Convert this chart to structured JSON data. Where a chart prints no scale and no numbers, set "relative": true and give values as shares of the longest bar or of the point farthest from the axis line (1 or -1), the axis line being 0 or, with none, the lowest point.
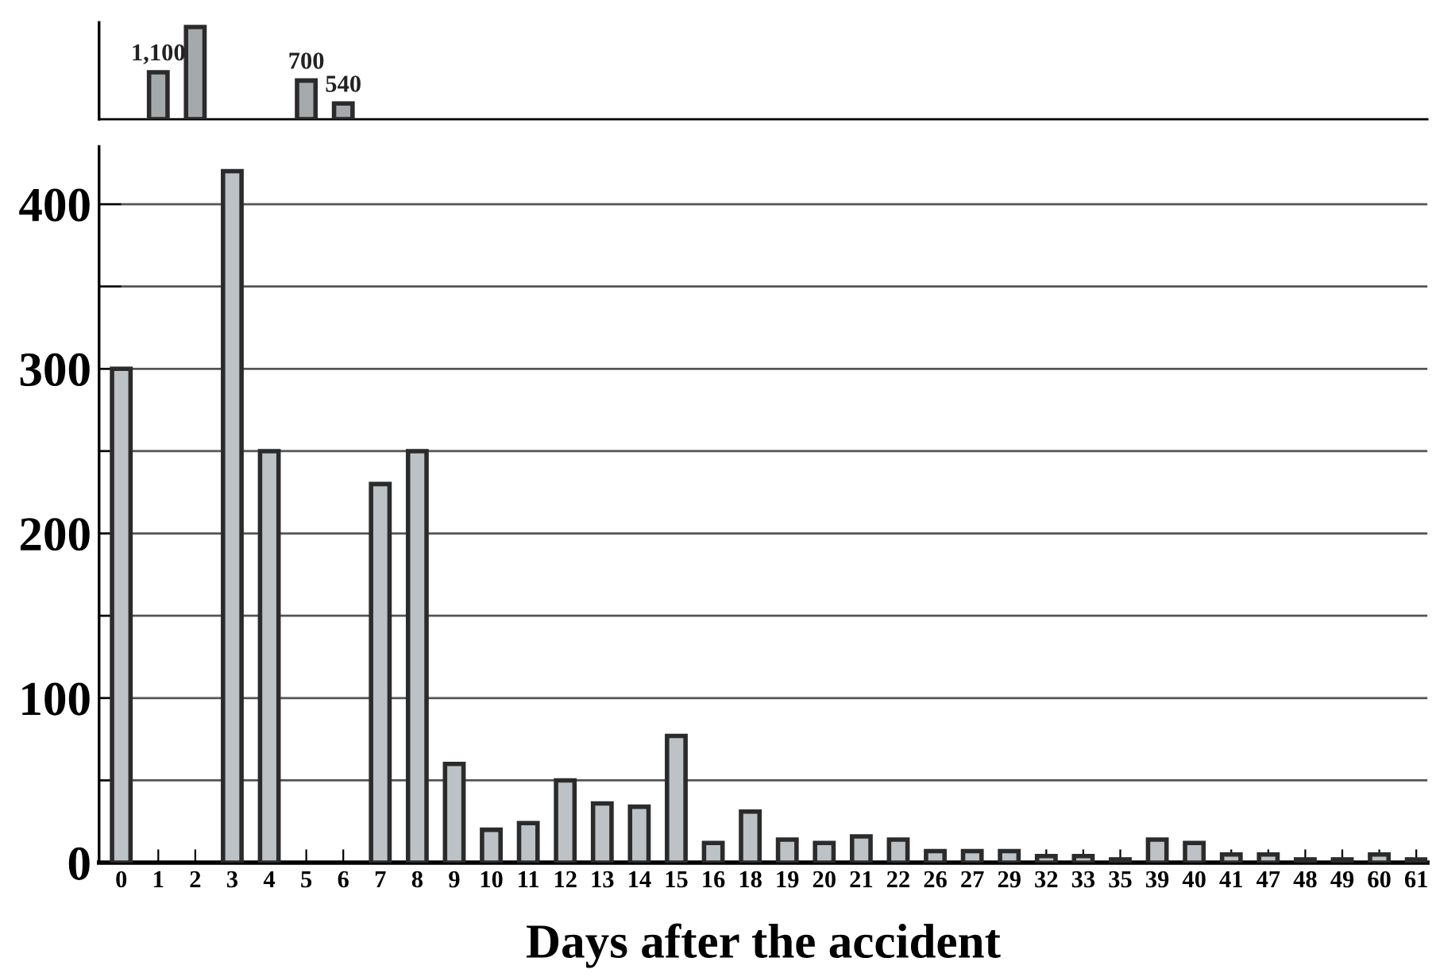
{
  "chart_data": [
    {
      "type": "bar",
      "relative": true,
      "categories": [
        "0",
        "1",
        "2",
        "3",
        "4",
        "5",
        "6",
        "7",
        "8",
        "9",
        "10",
        "11",
        "12",
        "13",
        "14",
        "15",
        "16",
        "18",
        "19",
        "20",
        "21",
        "22",
        "26",
        "27",
        "29",
        "32",
        "33",
        "35",
        "39",
        "40",
        "41",
        "47",
        "48",
        "49",
        "60",
        "61"
      ],
      "series": [
        {
          "color": "#a4a9ac",
          "values": [
            null,
            0.51,
            1,
            null,
            null,
            0.42,
            0.17,
            null,
            null,
            null,
            null,
            null,
            null,
            null,
            null,
            null,
            null,
            null,
            null,
            null,
            null,
            null,
            null,
            null,
            null,
            null,
            null,
            null,
            null,
            null,
            null,
            null,
            null,
            null,
            null,
            null
          ]
        }
      ],
      "value_labels": [
        null,
        "1,100",
        null,
        null,
        null,
        "700",
        "540",
        null,
        null,
        null,
        null,
        null,
        null,
        null,
        null,
        null,
        null,
        null,
        null,
        null,
        null,
        null,
        null,
        null,
        null,
        null,
        null,
        null,
        null,
        null,
        null,
        null,
        null,
        null,
        null,
        null
      ],
      "tick_labels": false
    },
    {
      "type": "bar",
      "categories": [
        "0",
        "1",
        "2",
        "3",
        "4",
        "5",
        "6",
        "7",
        "8",
        "9",
        "10",
        "11",
        "12",
        "13",
        "14",
        "15",
        "16",
        "18",
        "19",
        "20",
        "21",
        "22",
        "26",
        "27",
        "29",
        "32",
        "33",
        "35",
        "39",
        "40",
        "41",
        "47",
        "48",
        "49",
        "60",
        "61"
      ],
      "series": [
        {
          "color": "#bcc2c5",
          "values": [
            300,
            null,
            null,
            420,
            250,
            null,
            null,
            230,
            250,
            60,
            20,
            24,
            50,
            36,
            34,
            77,
            12,
            31,
            14,
            12,
            16,
            14,
            7,
            7,
            7,
            4,
            4,
            2,
            14,
            12,
            5,
            5,
            2,
            2,
            5,
            2
          ]
        }
      ],
      "ylim": [
        0,
        435
      ],
      "yticks": [
        0,
        {
          "value": 50,
          "label": null
        },
        100,
        {
          "value": 150,
          "label": null
        },
        200,
        {
          "value": 250,
          "label": null
        },
        300,
        {
          "value": 350,
          "label": null
        },
        400
      ],
      "grid": "y",
      "xlabel": "Days after the accident"
    }
  ]
}
